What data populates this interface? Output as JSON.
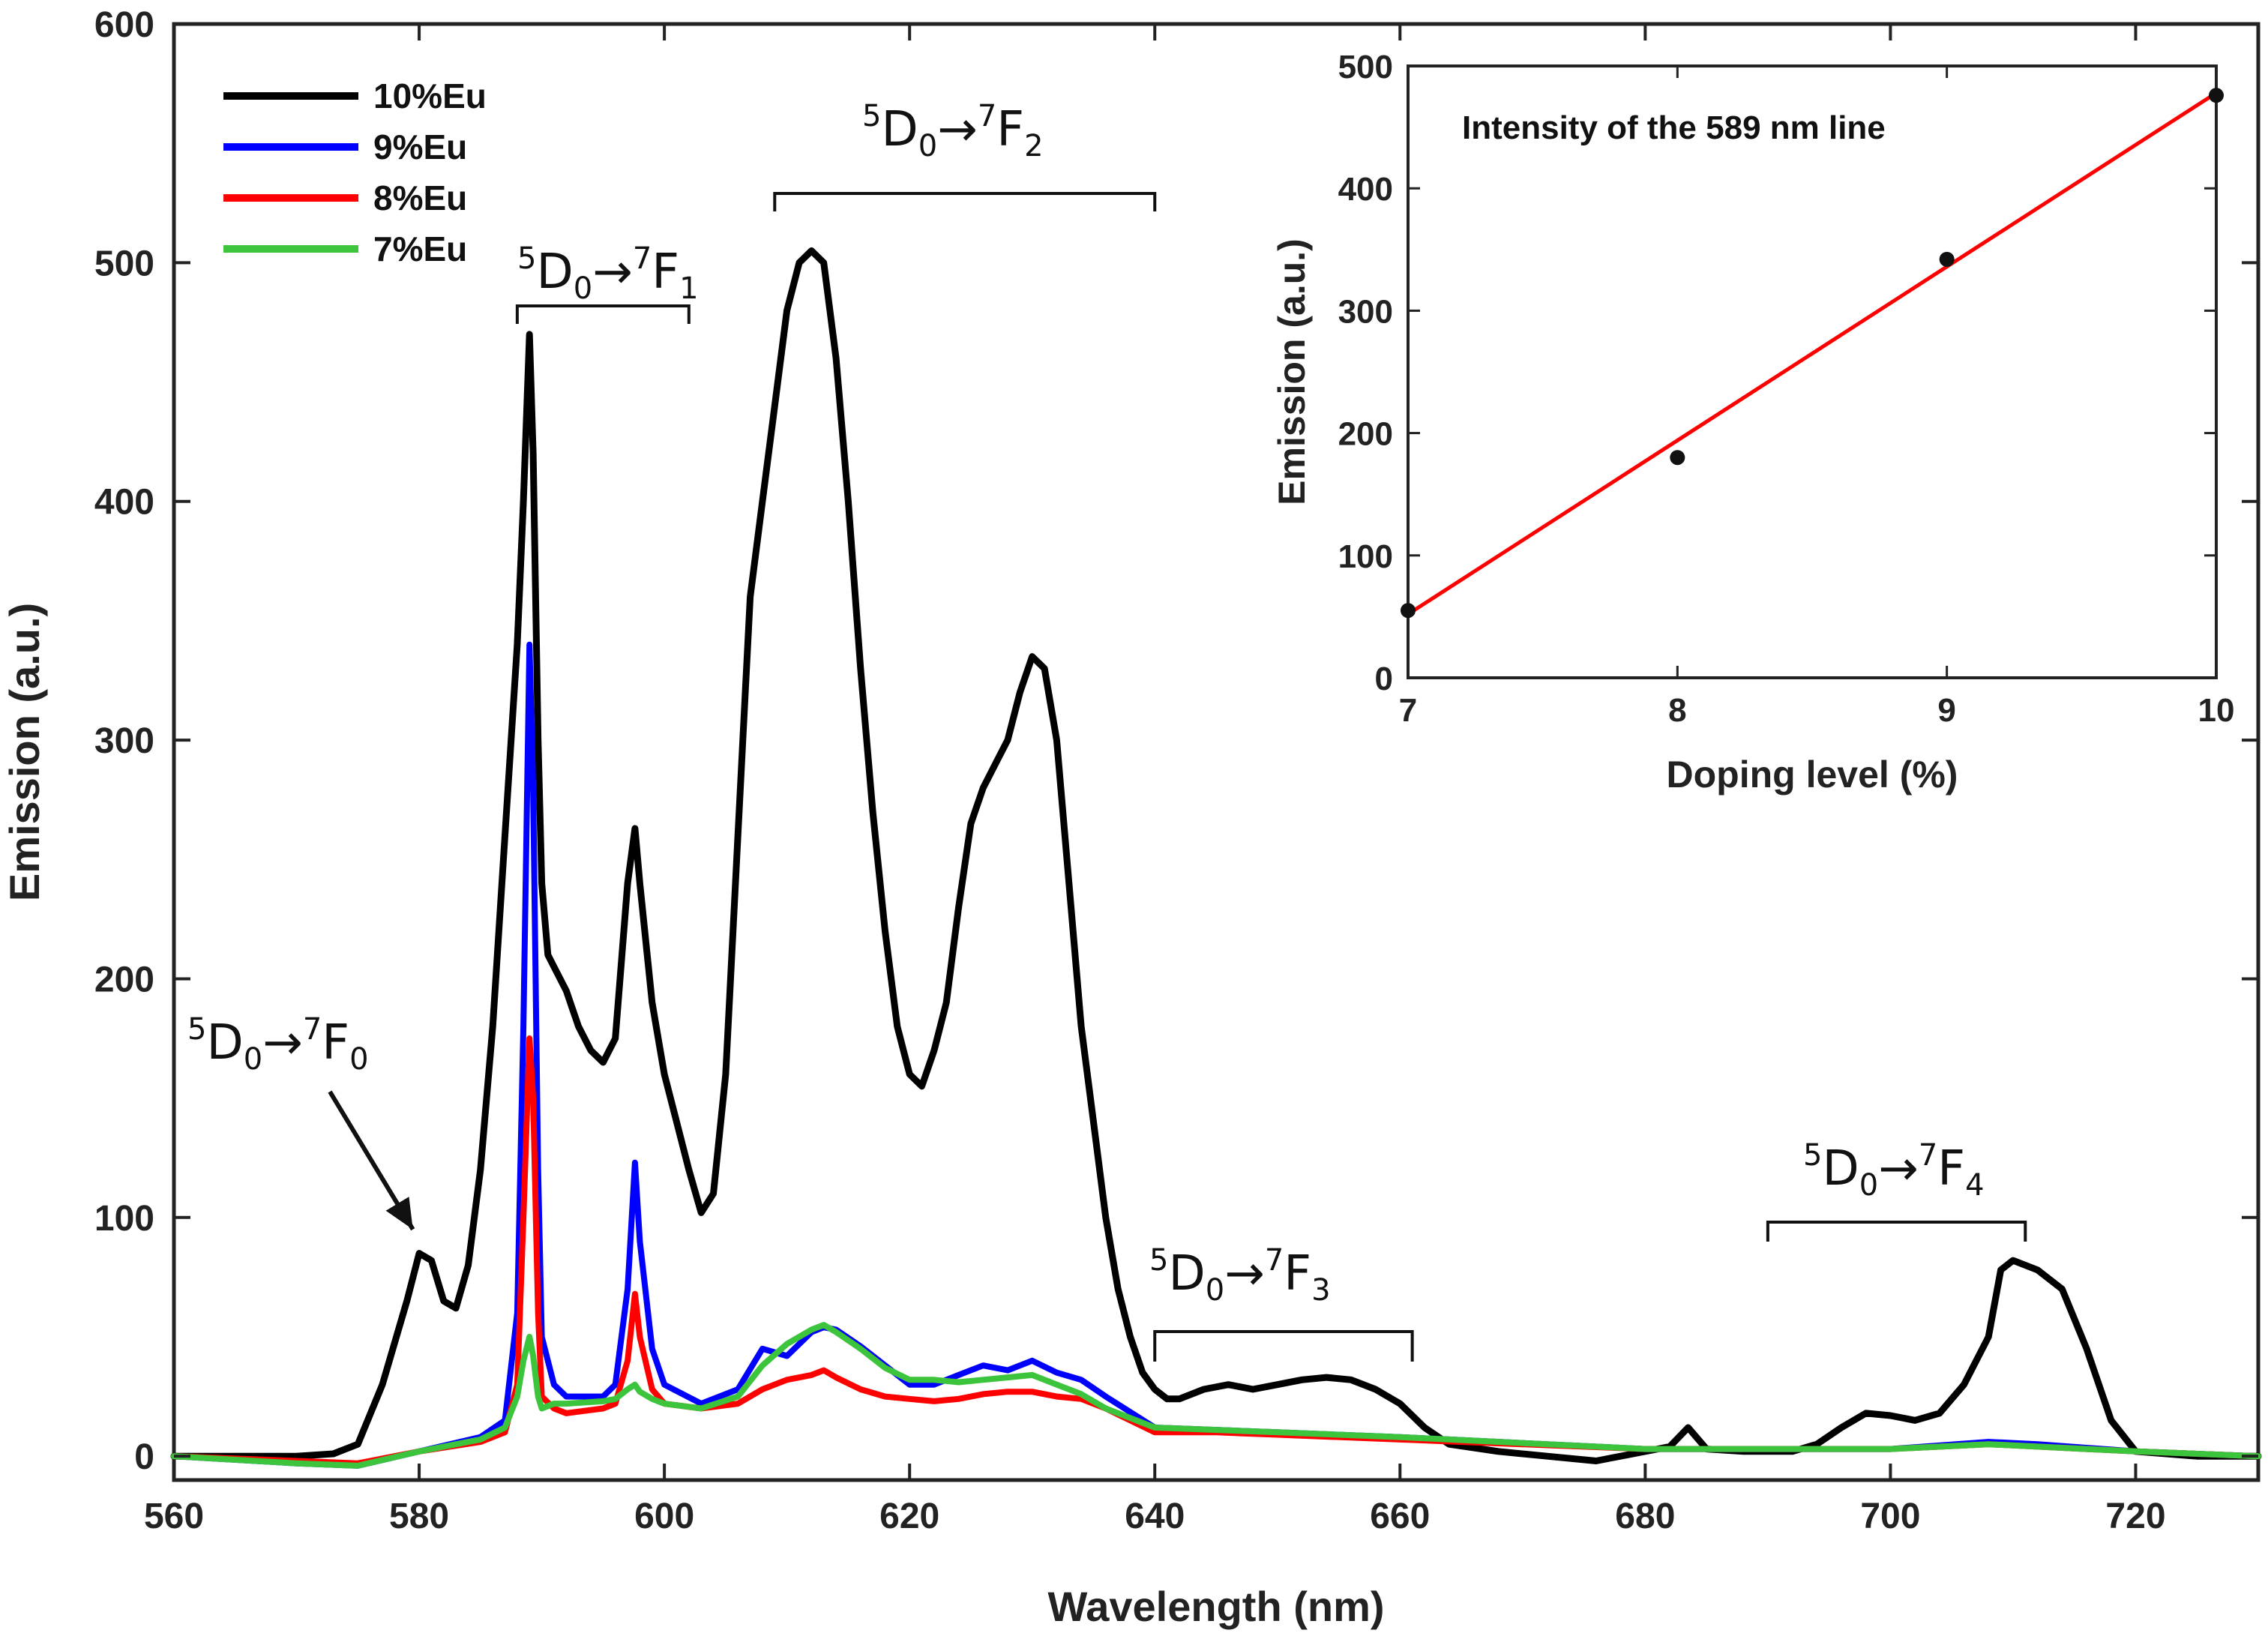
{
  "chart_data": [
    {
      "type": "line",
      "title": "",
      "xlabel": "Wavelength (nm)",
      "ylabel": "Emission (a.u.)",
      "xlim": [
        560,
        730
      ],
      "ylim": [
        -10,
        600
      ],
      "xticks": [
        560,
        580,
        600,
        620,
        640,
        660,
        680,
        700,
        720
      ],
      "yticks": [
        0,
        100,
        200,
        300,
        400,
        500,
        600
      ],
      "legend_position": "top-left",
      "series": [
        {
          "name": "10%Eu",
          "color": "#000000",
          "x": [
            560,
            565,
            570,
            573,
            575,
            577,
            579,
            580,
            581,
            582,
            583,
            584,
            585,
            586,
            587,
            588,
            588.5,
            589,
            589.3,
            589.7,
            590,
            590.5,
            591,
            592,
            593,
            594,
            595,
            596,
            597,
            597.6,
            598,
            599,
            600,
            601,
            602,
            603,
            604,
            605,
            606,
            607,
            608,
            609,
            610,
            611,
            612,
            613,
            614,
            615,
            616,
            617,
            618,
            619,
            620,
            621,
            622,
            623,
            624,
            625,
            626,
            627,
            628,
            629,
            630,
            631,
            632,
            633,
            634,
            635,
            636,
            637,
            638,
            639,
            640,
            641,
            642,
            644,
            646,
            648,
            650,
            652,
            654,
            656,
            658,
            660,
            662,
            664,
            668,
            672,
            676,
            680,
            682,
            683.5,
            685,
            688,
            692,
            694,
            696,
            698,
            700,
            702,
            704,
            706,
            708,
            709,
            710,
            712,
            714,
            716,
            718,
            720,
            725,
            730
          ],
          "y": [
            0,
            0,
            0,
            1,
            5,
            30,
            65,
            85,
            82,
            65,
            62,
            80,
            120,
            180,
            260,
            340,
            400,
            470,
            420,
            300,
            240,
            210,
            205,
            195,
            180,
            170,
            165,
            175,
            240,
            263,
            240,
            190,
            160,
            140,
            120,
            102,
            110,
            160,
            260,
            360,
            400,
            440,
            480,
            500,
            505,
            500,
            460,
            400,
            330,
            270,
            220,
            180,
            160,
            155,
            170,
            190,
            230,
            265,
            280,
            290,
            300,
            320,
            335,
            330,
            300,
            240,
            180,
            140,
            100,
            70,
            50,
            35,
            28,
            24,
            24,
            28,
            30,
            28,
            30,
            32,
            33,
            32,
            28,
            22,
            12,
            5,
            2,
            0,
            -2,
            2,
            4,
            12,
            3,
            2,
            2,
            5,
            12,
            18,
            17,
            15,
            18,
            30,
            50,
            78,
            82,
            78,
            70,
            45,
            15,
            2,
            0,
            0
          ]
        },
        {
          "name": "9%Eu",
          "color": "#0000ff",
          "x": [
            560,
            570,
            575,
            580,
            585,
            587,
            588,
            588.5,
            589,
            589.3,
            589.7,
            590,
            591,
            592,
            595,
            596,
            597,
            597.6,
            598,
            599,
            600,
            603,
            606,
            608,
            610,
            612,
            613,
            614,
            616,
            618,
            620,
            622,
            624,
            626,
            628,
            630,
            632,
            634,
            636,
            640,
            645,
            650,
            660,
            680,
            700,
            708,
            712,
            720,
            730
          ],
          "y": [
            0,
            -3,
            -4,
            2,
            8,
            15,
            60,
            180,
            340,
            280,
            120,
            50,
            30,
            25,
            25,
            30,
            70,
            123,
            90,
            45,
            30,
            22,
            28,
            45,
            42,
            52,
            54,
            53,
            46,
            38,
            30,
            30,
            34,
            38,
            36,
            40,
            35,
            32,
            25,
            12,
            11,
            10,
            8,
            3,
            3,
            6,
            5,
            2,
            0
          ]
        },
        {
          "name": "8%Eu",
          "color": "#ff0000",
          "x": [
            560,
            570,
            575,
            580,
            585,
            587,
            588,
            588.5,
            589,
            589.3,
            589.7,
            590,
            591,
            592,
            595,
            596,
            597,
            597.6,
            598,
            599,
            600,
            603,
            606,
            608,
            610,
            612,
            613,
            614,
            616,
            618,
            620,
            622,
            624,
            626,
            628,
            630,
            632,
            634,
            636,
            640,
            645,
            650,
            660,
            680,
            700,
            708,
            712,
            720,
            730
          ],
          "y": [
            0,
            -2,
            -3,
            2,
            6,
            10,
            30,
            100,
            175,
            150,
            60,
            25,
            20,
            18,
            20,
            22,
            40,
            68,
            50,
            28,
            22,
            20,
            22,
            28,
            32,
            34,
            36,
            33,
            28,
            25,
            24,
            23,
            24,
            26,
            27,
            27,
            25,
            24,
            20,
            10,
            10,
            9,
            7,
            3,
            3,
            5,
            4,
            2,
            0
          ]
        },
        {
          "name": "7%Eu",
          "color": "#3cc43c",
          "x": [
            560,
            570,
            575,
            580,
            585,
            587,
            588,
            588.5,
            589,
            589.3,
            589.7,
            590,
            591,
            592,
            595,
            596,
            597,
            597.6,
            598,
            599,
            600,
            603,
            606,
            608,
            610,
            612,
            613,
            614,
            616,
            618,
            620,
            622,
            624,
            626,
            628,
            630,
            632,
            634,
            636,
            640,
            645,
            650,
            660,
            680,
            700,
            708,
            712,
            720,
            730
          ],
          "y": [
            0,
            -3,
            -4,
            2,
            7,
            12,
            25,
            40,
            50,
            42,
            25,
            20,
            22,
            22,
            23,
            24,
            28,
            30,
            27,
            24,
            22,
            20,
            25,
            38,
            47,
            53,
            55,
            52,
            45,
            37,
            32,
            32,
            31,
            32,
            33,
            34,
            30,
            26,
            20,
            12,
            11,
            10,
            8,
            3,
            3,
            5,
            4,
            2,
            0
          ]
        }
      ],
      "annotations": [
        {
          "base": "D",
          "sup1": "5",
          "sub1": "0",
          "arrow": "→",
          "term": "F",
          "sup2": "7",
          "sub2": "0",
          "range": [
            579,
            579
          ]
        },
        {
          "base": "D",
          "sup1": "5",
          "sub1": "0",
          "arrow": "→",
          "term": "F",
          "sup2": "7",
          "sub2": "1",
          "range": [
            588,
            602
          ]
        },
        {
          "base": "D",
          "sup1": "5",
          "sub1": "0",
          "arrow": "→",
          "term": "F",
          "sup2": "7",
          "sub2": "2",
          "range": [
            609,
            640
          ]
        },
        {
          "base": "D",
          "sup1": "5",
          "sub1": "0",
          "arrow": "→",
          "term": "F",
          "sup2": "7",
          "sub2": "3",
          "range": [
            640,
            661
          ]
        },
        {
          "base": "D",
          "sup1": "5",
          "sub1": "0",
          "arrow": "→",
          "term": "F",
          "sup2": "7",
          "sub2": "4",
          "range": [
            690,
            711
          ]
        }
      ]
    },
    {
      "type": "scatter",
      "title": "Intensity of the 589 nm line",
      "xlabel": "Doping level (%)",
      "ylabel": "Emission (a.u.)",
      "xlim": [
        7,
        10
      ],
      "ylim": [
        0,
        500
      ],
      "xticks": [
        7,
        8,
        9,
        10
      ],
      "yticks": [
        0,
        100,
        200,
        300,
        400,
        500
      ],
      "points": {
        "x": [
          7,
          8,
          9,
          10
        ],
        "y": [
          55,
          180,
          342,
          476
        ]
      },
      "fit_line": {
        "color": "#ff0000",
        "x": [
          7,
          10
        ],
        "y": [
          52,
          478
        ]
      }
    }
  ]
}
